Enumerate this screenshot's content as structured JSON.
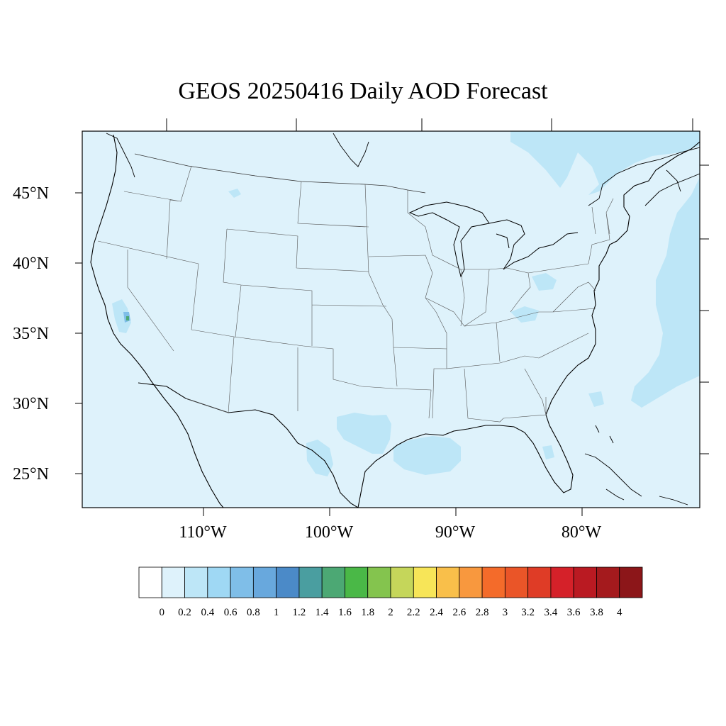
{
  "title": "GEOS 20250416 Daily AOD Forecast",
  "map": {
    "projection": "lat-lon",
    "lon_range_deg": [
      -119,
      -70
    ],
    "lat_range_deg": [
      22.5,
      49.5
    ],
    "lat_ticks": [
      "45°N",
      "40°N",
      "35°N",
      "30°N",
      "25°N"
    ],
    "lon_ticks": [
      "110°W",
      "100°W",
      "90°W",
      "80°W"
    ],
    "background_color": "#def2fb",
    "coast_color": "#000000",
    "state_border_color": "#555555"
  },
  "colorbar": {
    "labels": [
      "0",
      "0.2",
      "0.4",
      "0.6",
      "0.8",
      "1",
      "1.2",
      "1.4",
      "1.6",
      "1.8",
      "2",
      "2.2",
      "2.4",
      "2.6",
      "2.8",
      "3",
      "3.2",
      "3.4",
      "3.6",
      "3.8",
      "4"
    ],
    "colors": [
      "#ffffff",
      "#def2fb",
      "#bde6f7",
      "#9fd8f4",
      "#7fbee8",
      "#68a8dd",
      "#4b8ac8",
      "#4a9ea0",
      "#4ca874",
      "#4ab847",
      "#84c44e",
      "#c5d65a",
      "#f7e558",
      "#f9bf4a",
      "#f8983e",
      "#f46b2a",
      "#ea5528",
      "#df3c26",
      "#d52129",
      "#ba1a22",
      "#a41a1d",
      "#8c1619"
    ]
  },
  "aod_regions": [
    {
      "name": "Atlantic offshore",
      "level": "0.2-0.4"
    },
    {
      "name": "Gulf of Mexico",
      "level": "0.2-0.4"
    },
    {
      "name": "South Texas",
      "level": "0.2-0.4"
    },
    {
      "name": "Southern California hotspot",
      "level": "1.6-1.8"
    }
  ]
}
